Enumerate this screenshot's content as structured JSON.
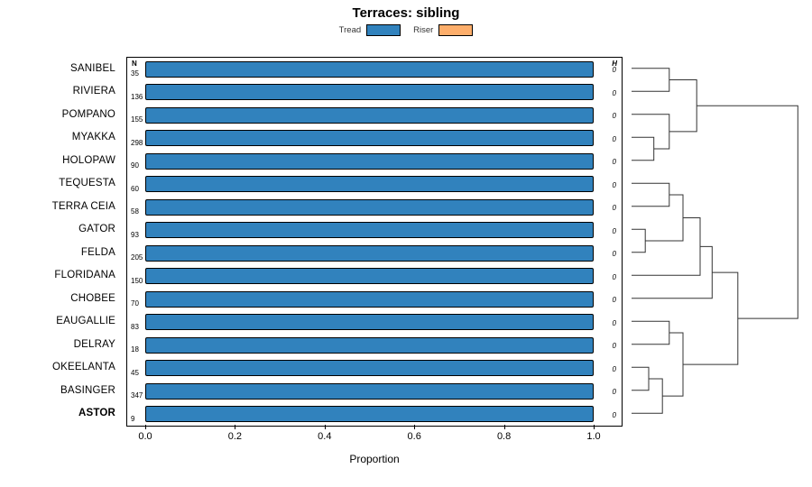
{
  "chart_data": {
    "type": "bar",
    "orientation": "horizontal-stacked",
    "title": "Terraces: sibling",
    "xlabel": "Proportion",
    "xlim": [
      0.0,
      1.0
    ],
    "x_ticks": [
      0.0,
      0.2,
      0.4,
      0.6,
      0.8,
      1.0
    ],
    "legend_position": "top",
    "grid": false,
    "legend": [
      {
        "label": "Tread",
        "color": "#3182BD"
      },
      {
        "label": "Riser",
        "color": "#FDAE6B"
      }
    ],
    "columns": {
      "n_header": "N",
      "h_header": "H"
    },
    "highlight_category": "ASTOR",
    "rows": [
      {
        "category": "SANIBEL",
        "n": 35,
        "values": {
          "Tread": 1.0,
          "Riser": 0.0
        },
        "h": "0"
      },
      {
        "category": "RIVIERA",
        "n": 136,
        "values": {
          "Tread": 1.0,
          "Riser": 0.0
        },
        "h": "0"
      },
      {
        "category": "POMPANO",
        "n": 155,
        "values": {
          "Tread": 1.0,
          "Riser": 0.0
        },
        "h": "0"
      },
      {
        "category": "MYAKKA",
        "n": 298,
        "values": {
          "Tread": 1.0,
          "Riser": 0.0
        },
        "h": "0"
      },
      {
        "category": "HOLOPAW",
        "n": 90,
        "values": {
          "Tread": 1.0,
          "Riser": 0.0
        },
        "h": "0"
      },
      {
        "category": "TEQUESTA",
        "n": 60,
        "values": {
          "Tread": 1.0,
          "Riser": 0.0
        },
        "h": "0"
      },
      {
        "category": "TERRA CEIA",
        "n": 58,
        "values": {
          "Tread": 1.0,
          "Riser": 0.0
        },
        "h": "0"
      },
      {
        "category": "GATOR",
        "n": 93,
        "values": {
          "Tread": 1.0,
          "Riser": 0.0
        },
        "h": "0"
      },
      {
        "category": "FELDA",
        "n": 205,
        "values": {
          "Tread": 1.0,
          "Riser": 0.0
        },
        "h": "0"
      },
      {
        "category": "FLORIDANA",
        "n": 150,
        "values": {
          "Tread": 1.0,
          "Riser": 0.0
        },
        "h": "0"
      },
      {
        "category": "CHOBEE",
        "n": 70,
        "values": {
          "Tread": 1.0,
          "Riser": 0.0
        },
        "h": "0"
      },
      {
        "category": "EAUGALLIE",
        "n": 83,
        "values": {
          "Tread": 1.0,
          "Riser": 0.0
        },
        "h": "0"
      },
      {
        "category": "DELRAY",
        "n": 18,
        "values": {
          "Tread": 1.0,
          "Riser": 0.0
        },
        "h": "0"
      },
      {
        "category": "OKEELANTA",
        "n": 45,
        "values": {
          "Tread": 1.0,
          "Riser": 0.0
        },
        "h": "0"
      },
      {
        "category": "BASINGER",
        "n": 347,
        "values": {
          "Tread": 1.0,
          "Riser": 0.0
        },
        "h": "0"
      },
      {
        "category": "ASTOR",
        "n": 9,
        "values": {
          "Tread": 1.0,
          "Riser": 0.0
        },
        "h": "0"
      }
    ],
    "dendrogram": {
      "note": "merges reference leaves 0-15 (top to bottom) or cluster ids 16+merge-index; h is normalized merge height 0-1",
      "merges": [
        {
          "a": 0,
          "b": 1,
          "h": 0.22
        },
        {
          "a": 3,
          "b": 4,
          "h": 0.13
        },
        {
          "a": 2,
          "b": 17,
          "h": 0.22
        },
        {
          "a": 16,
          "b": 18,
          "h": 0.38
        },
        {
          "a": 5,
          "b": 6,
          "h": 0.22
        },
        {
          "a": 7,
          "b": 8,
          "h": 0.08
        },
        {
          "a": 20,
          "b": 21,
          "h": 0.3
        },
        {
          "a": 22,
          "b": 9,
          "h": 0.4
        },
        {
          "a": 23,
          "b": 10,
          "h": 0.47
        },
        {
          "a": 13,
          "b": 14,
          "h": 0.1
        },
        {
          "a": 25,
          "b": 15,
          "h": 0.18
        },
        {
          "a": 11,
          "b": 12,
          "h": 0.22
        },
        {
          "a": 27,
          "b": 26,
          "h": 0.3
        },
        {
          "a": 24,
          "b": 28,
          "h": 0.62
        },
        {
          "a": 19,
          "b": 29,
          "h": 0.97
        }
      ]
    }
  }
}
